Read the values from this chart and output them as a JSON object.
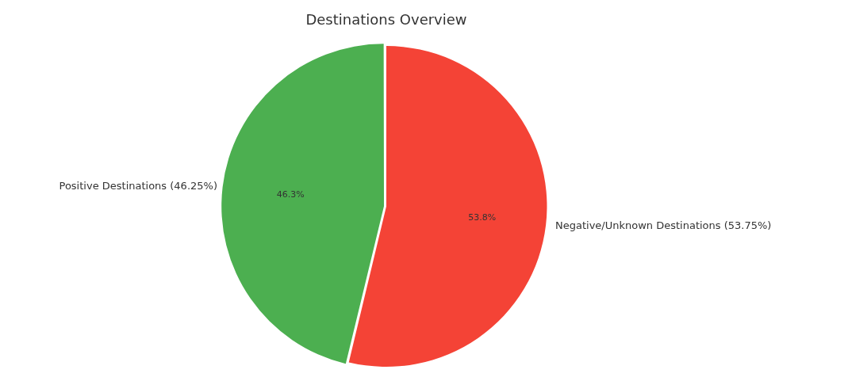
{
  "chart_data": {
    "type": "pie",
    "title": "Destinations Overview",
    "categories": [
      "Positive Destinations (46.25%)",
      "Negative/Unknown Destinations (53.75%)"
    ],
    "values": [
      46.25,
      53.75
    ],
    "colors": [
      "#4caf50",
      "#f44336"
    ],
    "value_labels": [
      "46.3%",
      "53.8%"
    ],
    "legend": false
  }
}
